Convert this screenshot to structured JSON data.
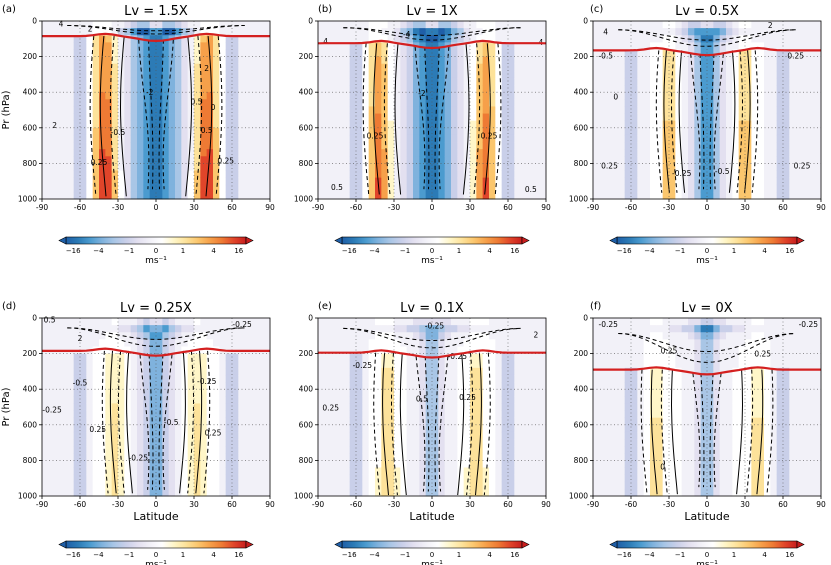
{
  "figure": {
    "x_axis_label": "Latitude",
    "y_axis_label": "Pr (hPa)"
  },
  "colorbar": {
    "tick_labels": [
      "−16",
      "−4",
      "−1",
      "0",
      "1",
      "4",
      "16"
    ],
    "unit_label": "ms⁻¹",
    "palette": [
      "#1f5fa8",
      "#2c7bb6",
      "#4b9bcf",
      "#7fb2dd",
      "#a9c6e6",
      "#c9cfe9",
      "#e3e0f0",
      "#f2f1f8",
      "#ffffff",
      "#fff6c8",
      "#fde29a",
      "#fbc66d",
      "#f6a04a",
      "#ee7a34",
      "#e0452a",
      "#c81e1e"
    ]
  },
  "chart_data": [
    {
      "type": "heatmap",
      "panel": "(a)",
      "title": "Lv = 1.5X",
      "xlabel": "",
      "ylabel": "Pr (hPa)",
      "xlim": [
        -90,
        90
      ],
      "ylim": [
        1000,
        0
      ],
      "x_ticks": [
        -90,
        -60,
        -30,
        0,
        30,
        60,
        90
      ],
      "y_ticks": [
        0,
        200,
        400,
        600,
        800,
        1000
      ],
      "tropopause_hPa": 85,
      "contour_labels": [
        {
          "text": "4",
          "lat": -75,
          "p": 30
        },
        {
          "text": "2",
          "lat": -52,
          "p": 60
        },
        {
          "text": "-2",
          "lat": -5,
          "p": 415
        },
        {
          "text": "2",
          "lat": -80,
          "p": 600
        },
        {
          "text": "-0.5",
          "lat": -30,
          "p": 640
        },
        {
          "text": "0.25",
          "lat": -45,
          "p": 810
        },
        {
          "text": "2",
          "lat": 40,
          "p": 280
        },
        {
          "text": "0.5",
          "lat": 32,
          "p": 470
        },
        {
          "text": "0",
          "lat": 45,
          "p": 500
        },
        {
          "text": "0.5",
          "lat": 40,
          "p": 630
        },
        {
          "text": "0.25",
          "lat": 55,
          "p": 800
        }
      ]
    },
    {
      "type": "heatmap",
      "panel": "(b)",
      "title": "Lv = 1X",
      "xlabel": "",
      "ylabel": "",
      "xlim": [
        -90,
        90
      ],
      "ylim": [
        1000,
        0
      ],
      "x_ticks": [
        -90,
        -60,
        -30,
        0,
        30,
        60,
        90
      ],
      "y_ticks": [
        0,
        200,
        400,
        600,
        800,
        1000
      ],
      "tropopause_hPa": 125,
      "contour_labels": [
        {
          "text": "4",
          "lat": -84,
          "p": 130
        },
        {
          "text": "4",
          "lat": 86,
          "p": 135
        },
        {
          "text": "-4",
          "lat": -20,
          "p": 90
        },
        {
          "text": "-2",
          "lat": -8,
          "p": 420
        },
        {
          "text": "0.25",
          "lat": -45,
          "p": 660
        },
        {
          "text": "0.25",
          "lat": 45,
          "p": 660
        },
        {
          "text": "0.5",
          "lat": -75,
          "p": 950
        },
        {
          "text": "0.5",
          "lat": 78,
          "p": 960
        }
      ]
    },
    {
      "type": "heatmap",
      "panel": "(c)",
      "title": "Lv = 0.5X",
      "xlabel": "",
      "ylabel": "",
      "xlim": [
        -90,
        90
      ],
      "ylim": [
        1000,
        0
      ],
      "x_ticks": [
        -90,
        -60,
        -30,
        0,
        30,
        60,
        90
      ],
      "y_ticks": [
        0,
        200,
        400,
        600,
        800,
        1000
      ],
      "tropopause_hPa": 165,
      "contour_labels": [
        {
          "text": "4",
          "lat": -80,
          "p": 75
        },
        {
          "text": "2",
          "lat": 50,
          "p": 40
        },
        {
          "text": "-0.5",
          "lat": -80,
          "p": 210
        },
        {
          "text": "0.25",
          "lat": 70,
          "p": 210
        },
        {
          "text": "0",
          "lat": -72,
          "p": 440
        },
        {
          "text": "0.25",
          "lat": -77,
          "p": 830
        },
        {
          "text": "-0.25",
          "lat": -20,
          "p": 870
        },
        {
          "text": "-0.5",
          "lat": 12,
          "p": 860
        },
        {
          "text": "0.25",
          "lat": 75,
          "p": 830
        }
      ]
    },
    {
      "type": "heatmap",
      "panel": "(d)",
      "title": "Lv = 0.25X",
      "xlabel": "Latitude",
      "ylabel": "Pr (hPa)",
      "xlim": [
        -90,
        90
      ],
      "ylim": [
        1000,
        0
      ],
      "x_ticks": [
        -90,
        -60,
        -30,
        0,
        30,
        60,
        90
      ],
      "y_ticks": [
        0,
        200,
        400,
        600,
        800,
        1000
      ],
      "tropopause_hPa": 185,
      "contour_labels": [
        {
          "text": "0.5",
          "lat": -84,
          "p": 25
        },
        {
          "text": "2",
          "lat": -60,
          "p": 130
        },
        {
          "text": "-0.25",
          "lat": 68,
          "p": 50
        },
        {
          "text": "-0.5",
          "lat": -60,
          "p": 380
        },
        {
          "text": "-0.25",
          "lat": -82,
          "p": 530
        },
        {
          "text": "0.25",
          "lat": -46,
          "p": 640
        },
        {
          "text": "-0.5",
          "lat": 12,
          "p": 600
        },
        {
          "text": "-0.25",
          "lat": 40,
          "p": 370
        },
        {
          "text": "0.25",
          "lat": 45,
          "p": 660
        },
        {
          "text": "-0.25",
          "lat": -14,
          "p": 800
        }
      ]
    },
    {
      "type": "heatmap",
      "panel": "(e)",
      "title": "Lv = 0.1X",
      "xlabel": "Latitude",
      "ylabel": "",
      "xlim": [
        -90,
        90
      ],
      "ylim": [
        1000,
        0
      ],
      "x_ticks": [
        -90,
        -60,
        -30,
        0,
        30,
        60,
        90
      ],
      "y_ticks": [
        0,
        200,
        400,
        600,
        800,
        1000
      ],
      "tropopause_hPa": 195,
      "contour_labels": [
        {
          "text": "-0.25",
          "lat": 2,
          "p": 60
        },
        {
          "text": "2",
          "lat": 82,
          "p": 110
        },
        {
          "text": "-0.25",
          "lat": -55,
          "p": 280
        },
        {
          "text": "0.25",
          "lat": -80,
          "p": 520
        },
        {
          "text": "-0.25",
          "lat": 20,
          "p": 230
        },
        {
          "text": "0.5",
          "lat": -8,
          "p": 470
        },
        {
          "text": "0.25",
          "lat": 28,
          "p": 460
        }
      ]
    },
    {
      "type": "heatmap",
      "panel": "(f)",
      "title": "Lv = 0X",
      "xlabel": "Latitude",
      "ylabel": "",
      "xlim": [
        -90,
        90
      ],
      "ylim": [
        1000,
        0
      ],
      "x_ticks": [
        -90,
        -60,
        -30,
        0,
        30,
        60,
        90
      ],
      "y_ticks": [
        0,
        200,
        400,
        600,
        800,
        1000
      ],
      "tropopause_hPa": 290,
      "contour_labels": [
        {
          "text": "-0.25",
          "lat": -78,
          "p": 50
        },
        {
          "text": "-0.25",
          "lat": 80,
          "p": 50
        },
        {
          "text": "0.25",
          "lat": -30,
          "p": 200
        },
        {
          "text": "0.25",
          "lat": 44,
          "p": 215
        },
        {
          "text": "0",
          "lat": -35,
          "p": 850
        }
      ]
    }
  ]
}
